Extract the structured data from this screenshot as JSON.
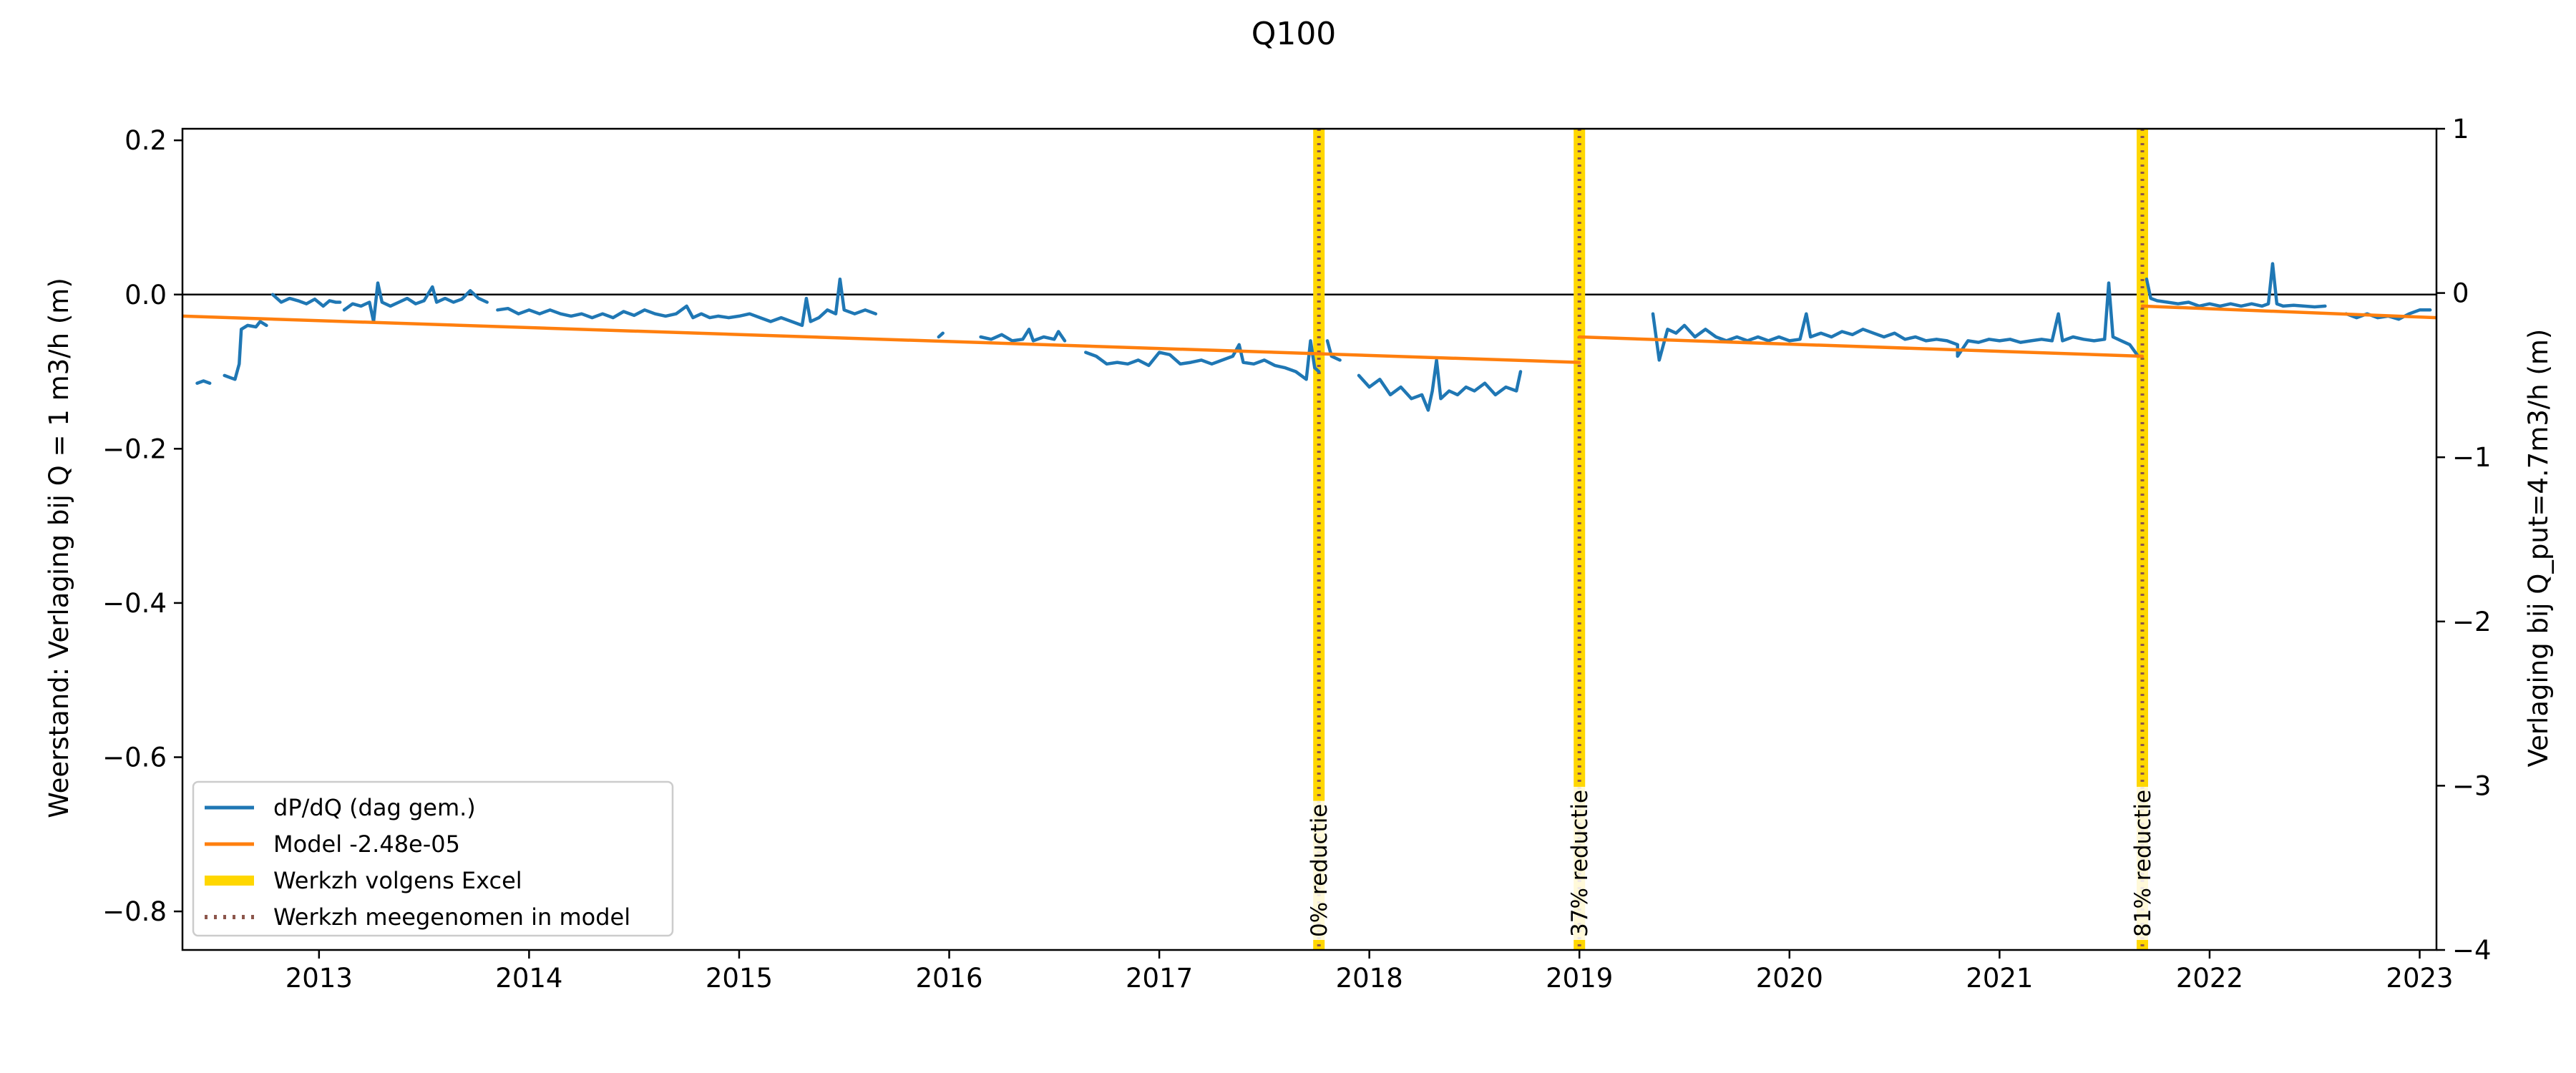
{
  "chart_data": {
    "type": "line",
    "title": "Q100",
    "ylabel_left": "Weerstand: Verlaging bij Q = 1 m3/h (m)",
    "ylabel_right": "Verlaging bij Q_put=4.7m3/h (m)",
    "xlim": [
      2012.35,
      2023.08
    ],
    "ylim_left": [
      -0.85,
      0.215
    ],
    "ylim_right": [
      -4,
      1
    ],
    "x_ticks": [
      2013,
      2014,
      2015,
      2016,
      2017,
      2018,
      2019,
      2020,
      2021,
      2022,
      2023
    ],
    "x_tick_labels": [
      "2013",
      "2014",
      "2015",
      "2016",
      "2017",
      "2018",
      "2019",
      "2020",
      "2021",
      "2022",
      "2023"
    ],
    "y_ticks_left": [
      0.2,
      0.0,
      -0.2,
      -0.4,
      -0.6,
      -0.8
    ],
    "y_tick_labels_left": [
      "0.2",
      "0.0",
      "−0.2",
      "−0.4",
      "−0.6",
      "−0.8"
    ],
    "y_ticks_right": [
      1,
      0,
      -1,
      -2,
      -3,
      -4
    ],
    "y_tick_labels_right": [
      "1",
      "0",
      "−1",
      "−2",
      "−3",
      "−4"
    ],
    "reference_line_y": 0.0,
    "grid": false,
    "legend_position": "lower-left",
    "legend": [
      {
        "label": "dP/dQ (dag gem.)",
        "color": "#1f77b4",
        "style": "solid"
      },
      {
        "label": "Model -2.48e-05",
        "color": "#ff7f0e",
        "style": "solid"
      },
      {
        "label": "Werkzh volgens Excel",
        "color": "#ffd700",
        "style": "thick"
      },
      {
        "label": "Werkzh meegenomen in model",
        "color": "#8c564b",
        "style": "dotted"
      }
    ],
    "events": [
      {
        "x": 2017.76,
        "label": "0% reductie"
      },
      {
        "x": 2019.0,
        "label": "37% reductie"
      },
      {
        "x": 2021.68,
        "label": "81% reductie"
      }
    ],
    "series": [
      {
        "name": "dP/dQ (dag gem.)",
        "color": "#1f77b4",
        "segments": [
          [
            [
              2012.42,
              -0.115
            ],
            [
              2012.45,
              -0.112
            ],
            [
              2012.48,
              -0.115
            ]
          ],
          [
            [
              2012.55,
              -0.105
            ],
            [
              2012.58,
              -0.108
            ],
            [
              2012.6,
              -0.11
            ],
            [
              2012.62,
              -0.09
            ],
            [
              2012.63,
              -0.045
            ],
            [
              2012.66,
              -0.04
            ],
            [
              2012.7,
              -0.042
            ],
            [
              2012.72,
              -0.035
            ],
            [
              2012.75,
              -0.04
            ]
          ],
          [
            [
              2012.78,
              0.0
            ],
            [
              2012.82,
              -0.01
            ],
            [
              2012.86,
              -0.005
            ],
            [
              2012.9,
              -0.008
            ],
            [
              2012.94,
              -0.012
            ],
            [
              2012.98,
              -0.006
            ],
            [
              2013.02,
              -0.015
            ],
            [
              2013.05,
              -0.008
            ],
            [
              2013.08,
              -0.01
            ],
            [
              2013.1,
              -0.01
            ]
          ],
          [
            [
              2013.12,
              -0.02
            ],
            [
              2013.16,
              -0.012
            ],
            [
              2013.2,
              -0.015
            ],
            [
              2013.24,
              -0.01
            ],
            [
              2013.26,
              -0.035
            ],
            [
              2013.28,
              0.015
            ],
            [
              2013.3,
              -0.01
            ],
            [
              2013.34,
              -0.015
            ],
            [
              2013.38,
              -0.01
            ],
            [
              2013.42,
              -0.005
            ],
            [
              2013.46,
              -0.012
            ],
            [
              2013.5,
              -0.008
            ],
            [
              2013.54,
              0.01
            ],
            [
              2013.56,
              -0.01
            ],
            [
              2013.6,
              -0.005
            ],
            [
              2013.64,
              -0.01
            ],
            [
              2013.68,
              -0.006
            ],
            [
              2013.72,
              0.005
            ],
            [
              2013.76,
              -0.005
            ],
            [
              2013.8,
              -0.01
            ]
          ],
          [
            [
              2013.85,
              -0.02
            ],
            [
              2013.9,
              -0.018
            ],
            [
              2013.95,
              -0.025
            ],
            [
              2014.0,
              -0.02
            ],
            [
              2014.05,
              -0.025
            ],
            [
              2014.1,
              -0.02
            ],
            [
              2014.15,
              -0.025
            ],
            [
              2014.2,
              -0.028
            ],
            [
              2014.25,
              -0.025
            ],
            [
              2014.3,
              -0.03
            ],
            [
              2014.35,
              -0.025
            ],
            [
              2014.4,
              -0.03
            ],
            [
              2014.45,
              -0.022
            ],
            [
              2014.5,
              -0.027
            ],
            [
              2014.55,
              -0.02
            ],
            [
              2014.6,
              -0.025
            ],
            [
              2014.65,
              -0.028
            ],
            [
              2014.7,
              -0.025
            ],
            [
              2014.75,
              -0.015
            ],
            [
              2014.78,
              -0.03
            ],
            [
              2014.82,
              -0.025
            ],
            [
              2014.86,
              -0.03
            ],
            [
              2014.9,
              -0.028
            ],
            [
              2014.95,
              -0.03
            ],
            [
              2015.0,
              -0.028
            ],
            [
              2015.05,
              -0.025
            ],
            [
              2015.1,
              -0.03
            ],
            [
              2015.15,
              -0.035
            ],
            [
              2015.2,
              -0.03
            ],
            [
              2015.25,
              -0.035
            ],
            [
              2015.3,
              -0.04
            ],
            [
              2015.32,
              -0.005
            ],
            [
              2015.34,
              -0.035
            ],
            [
              2015.38,
              -0.03
            ],
            [
              2015.42,
              -0.02
            ],
            [
              2015.46,
              -0.025
            ],
            [
              2015.48,
              0.02
            ],
            [
              2015.5,
              -0.02
            ],
            [
              2015.55,
              -0.025
            ],
            [
              2015.6,
              -0.02
            ],
            [
              2015.65,
              -0.025
            ]
          ],
          [
            [
              2015.95,
              -0.055
            ],
            [
              2015.97,
              -0.05
            ]
          ],
          [
            [
              2016.15,
              -0.055
            ],
            [
              2016.2,
              -0.058
            ],
            [
              2016.25,
              -0.052
            ],
            [
              2016.3,
              -0.06
            ],
            [
              2016.35,
              -0.058
            ],
            [
              2016.38,
              -0.045
            ],
            [
              2016.4,
              -0.06
            ],
            [
              2016.45,
              -0.055
            ],
            [
              2016.5,
              -0.058
            ],
            [
              2016.52,
              -0.048
            ],
            [
              2016.55,
              -0.06
            ]
          ],
          [
            [
              2016.65,
              -0.075
            ],
            [
              2016.7,
              -0.08
            ],
            [
              2016.75,
              -0.09
            ],
            [
              2016.8,
              -0.088
            ],
            [
              2016.85,
              -0.09
            ],
            [
              2016.9,
              -0.085
            ],
            [
              2016.95,
              -0.092
            ],
            [
              2017.0,
              -0.075
            ],
            [
              2017.05,
              -0.078
            ],
            [
              2017.1,
              -0.09
            ],
            [
              2017.15,
              -0.088
            ],
            [
              2017.2,
              -0.085
            ],
            [
              2017.25,
              -0.09
            ],
            [
              2017.3,
              -0.085
            ],
            [
              2017.35,
              -0.08
            ],
            [
              2017.38,
              -0.065
            ],
            [
              2017.4,
              -0.088
            ],
            [
              2017.45,
              -0.09
            ],
            [
              2017.5,
              -0.085
            ],
            [
              2017.55,
              -0.092
            ],
            [
              2017.6,
              -0.095
            ],
            [
              2017.65,
              -0.1
            ],
            [
              2017.7,
              -0.11
            ],
            [
              2017.72,
              -0.06
            ],
            [
              2017.74,
              -0.095
            ],
            [
              2017.76,
              -0.1
            ]
          ],
          [
            [
              2017.8,
              -0.06
            ],
            [
              2017.82,
              -0.08
            ],
            [
              2017.86,
              -0.085
            ]
          ],
          [
            [
              2017.95,
              -0.105
            ],
            [
              2018.0,
              -0.12
            ],
            [
              2018.05,
              -0.11
            ],
            [
              2018.1,
              -0.13
            ],
            [
              2018.15,
              -0.12
            ],
            [
              2018.2,
              -0.135
            ],
            [
              2018.25,
              -0.13
            ],
            [
              2018.28,
              -0.15
            ],
            [
              2018.3,
              -0.125
            ],
            [
              2018.32,
              -0.085
            ],
            [
              2018.34,
              -0.135
            ],
            [
              2018.38,
              -0.125
            ],
            [
              2018.42,
              -0.13
            ],
            [
              2018.46,
              -0.12
            ],
            [
              2018.5,
              -0.125
            ],
            [
              2018.55,
              -0.115
            ],
            [
              2018.6,
              -0.13
            ],
            [
              2018.65,
              -0.12
            ],
            [
              2018.7,
              -0.125
            ],
            [
              2018.72,
              -0.1
            ]
          ],
          [
            [
              2019.35,
              -0.025
            ],
            [
              2019.38,
              -0.085
            ],
            [
              2019.42,
              -0.045
            ],
            [
              2019.46,
              -0.05
            ],
            [
              2019.5,
              -0.04
            ],
            [
              2019.55,
              -0.055
            ],
            [
              2019.6,
              -0.045
            ],
            [
              2019.65,
              -0.055
            ],
            [
              2019.7,
              -0.06
            ],
            [
              2019.75,
              -0.055
            ],
            [
              2019.8,
              -0.06
            ],
            [
              2019.85,
              -0.055
            ],
            [
              2019.9,
              -0.06
            ],
            [
              2019.95,
              -0.055
            ],
            [
              2020.0,
              -0.06
            ],
            [
              2020.05,
              -0.058
            ],
            [
              2020.08,
              -0.025
            ],
            [
              2020.1,
              -0.055
            ],
            [
              2020.15,
              -0.05
            ],
            [
              2020.2,
              -0.055
            ],
            [
              2020.25,
              -0.048
            ],
            [
              2020.3,
              -0.052
            ],
            [
              2020.35,
              -0.045
            ],
            [
              2020.4,
              -0.05
            ],
            [
              2020.45,
              -0.055
            ],
            [
              2020.5,
              -0.05
            ],
            [
              2020.55,
              -0.058
            ],
            [
              2020.6,
              -0.055
            ],
            [
              2020.65,
              -0.06
            ],
            [
              2020.7,
              -0.058
            ],
            [
              2020.75,
              -0.06
            ],
            [
              2020.8,
              -0.065
            ],
            [
              2020.8,
              -0.08
            ],
            [
              2020.85,
              -0.06
            ],
            [
              2020.9,
              -0.062
            ],
            [
              2020.95,
              -0.058
            ],
            [
              2021.0,
              -0.06
            ],
            [
              2021.05,
              -0.058
            ],
            [
              2021.1,
              -0.062
            ],
            [
              2021.15,
              -0.06
            ],
            [
              2021.2,
              -0.058
            ],
            [
              2021.25,
              -0.06
            ],
            [
              2021.28,
              -0.025
            ],
            [
              2021.3,
              -0.06
            ],
            [
              2021.35,
              -0.055
            ],
            [
              2021.4,
              -0.058
            ],
            [
              2021.45,
              -0.06
            ],
            [
              2021.5,
              -0.058
            ],
            [
              2021.52,
              0.015
            ],
            [
              2021.54,
              -0.055
            ],
            [
              2021.58,
              -0.06
            ],
            [
              2021.62,
              -0.065
            ],
            [
              2021.66,
              -0.08
            ]
          ],
          [
            [
              2021.7,
              0.02
            ],
            [
              2021.72,
              -0.005
            ],
            [
              2021.75,
              -0.008
            ],
            [
              2021.8,
              -0.01
            ],
            [
              2021.85,
              -0.012
            ],
            [
              2021.9,
              -0.01
            ],
            [
              2021.95,
              -0.015
            ],
            [
              2022.0,
              -0.012
            ],
            [
              2022.05,
              -0.015
            ],
            [
              2022.1,
              -0.012
            ],
            [
              2022.15,
              -0.015
            ],
            [
              2022.2,
              -0.012
            ],
            [
              2022.25,
              -0.015
            ],
            [
              2022.28,
              -0.012
            ],
            [
              2022.3,
              0.04
            ],
            [
              2022.32,
              -0.012
            ],
            [
              2022.35,
              -0.015
            ],
            [
              2022.4,
              -0.014
            ],
            [
              2022.45,
              -0.015
            ],
            [
              2022.5,
              -0.016
            ],
            [
              2022.55,
              -0.015
            ]
          ],
          [
            [
              2022.65,
              -0.025
            ],
            [
              2022.7,
              -0.03
            ],
            [
              2022.75,
              -0.025
            ],
            [
              2022.8,
              -0.03
            ],
            [
              2022.85,
              -0.028
            ],
            [
              2022.9,
              -0.032
            ],
            [
              2022.95,
              -0.025
            ],
            [
              2023.0,
              -0.02
            ],
            [
              2023.05,
              -0.02
            ]
          ]
        ]
      },
      {
        "name": "Model -2.48e-05",
        "color": "#ff7f0e",
        "segments": [
          [
            [
              2012.35,
              -0.028
            ],
            [
              2019.0,
              -0.088
            ]
          ],
          [
            [
              2019.0,
              -0.055
            ],
            [
              2021.68,
              -0.08
            ]
          ],
          [
            [
              2021.68,
              -0.015
            ],
            [
              2023.08,
              -0.03
            ]
          ]
        ]
      }
    ]
  }
}
